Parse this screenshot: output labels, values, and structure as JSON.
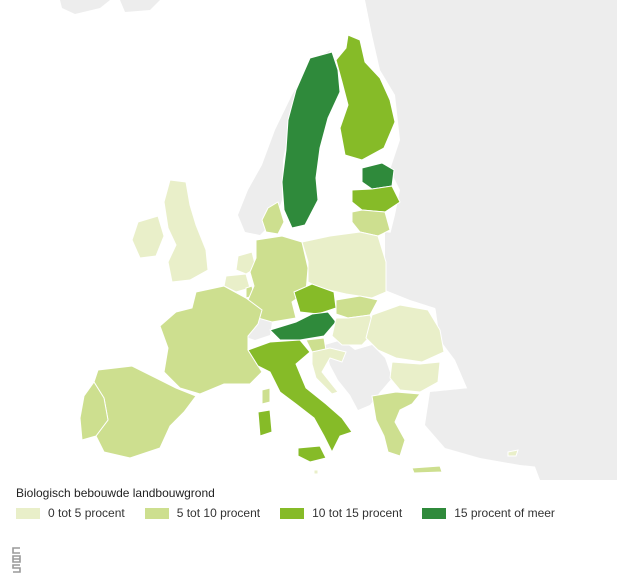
{
  "legend": {
    "title": "Biologisch bebouwde landbouwgrond",
    "classes": [
      {
        "label": "0 tot 5 procent",
        "color": "#e9efc9"
      },
      {
        "label": "5 tot 10 procent",
        "color": "#cddf8f"
      },
      {
        "label": "10 tot 15 procent",
        "color": "#86bb28"
      },
      {
        "label": "15 procent of meer",
        "color": "#2f8a3b"
      }
    ]
  },
  "background_colors": {
    "sea": "#ffffff",
    "non_eu_land": "#ededed"
  },
  "countries": [
    {
      "name": "Zweden",
      "class": 3
    },
    {
      "name": "Finland",
      "class": 2
    },
    {
      "name": "Estland",
      "class": 3
    },
    {
      "name": "Letland",
      "class": 2
    },
    {
      "name": "Litouwen",
      "class": 1
    },
    {
      "name": "Denemarken",
      "class": 1
    },
    {
      "name": "Ierland",
      "class": 0
    },
    {
      "name": "Verenigd Koninkrijk",
      "class": 0
    },
    {
      "name": "Nederland",
      "class": 0
    },
    {
      "name": "België",
      "class": 0
    },
    {
      "name": "Luxemburg",
      "class": 1
    },
    {
      "name": "Duitsland",
      "class": 1
    },
    {
      "name": "Polen",
      "class": 0
    },
    {
      "name": "Tsjechië",
      "class": 2
    },
    {
      "name": "Slowakije",
      "class": 1
    },
    {
      "name": "Oostenrijk",
      "class": 3
    },
    {
      "name": "Hongarije",
      "class": 0
    },
    {
      "name": "Slovenië",
      "class": 1
    },
    {
      "name": "Kroatië",
      "class": 0
    },
    {
      "name": "Roemenië",
      "class": 0
    },
    {
      "name": "Bulgarije",
      "class": 0
    },
    {
      "name": "Griekenland",
      "class": 1
    },
    {
      "name": "Cyprus",
      "class": 0
    },
    {
      "name": "Frankrijk",
      "class": 1
    },
    {
      "name": "Spanje",
      "class": 1
    },
    {
      "name": "Portugal",
      "class": 1
    },
    {
      "name": "Italië",
      "class": 2
    },
    {
      "name": "Malta",
      "class": 0
    }
  ]
}
